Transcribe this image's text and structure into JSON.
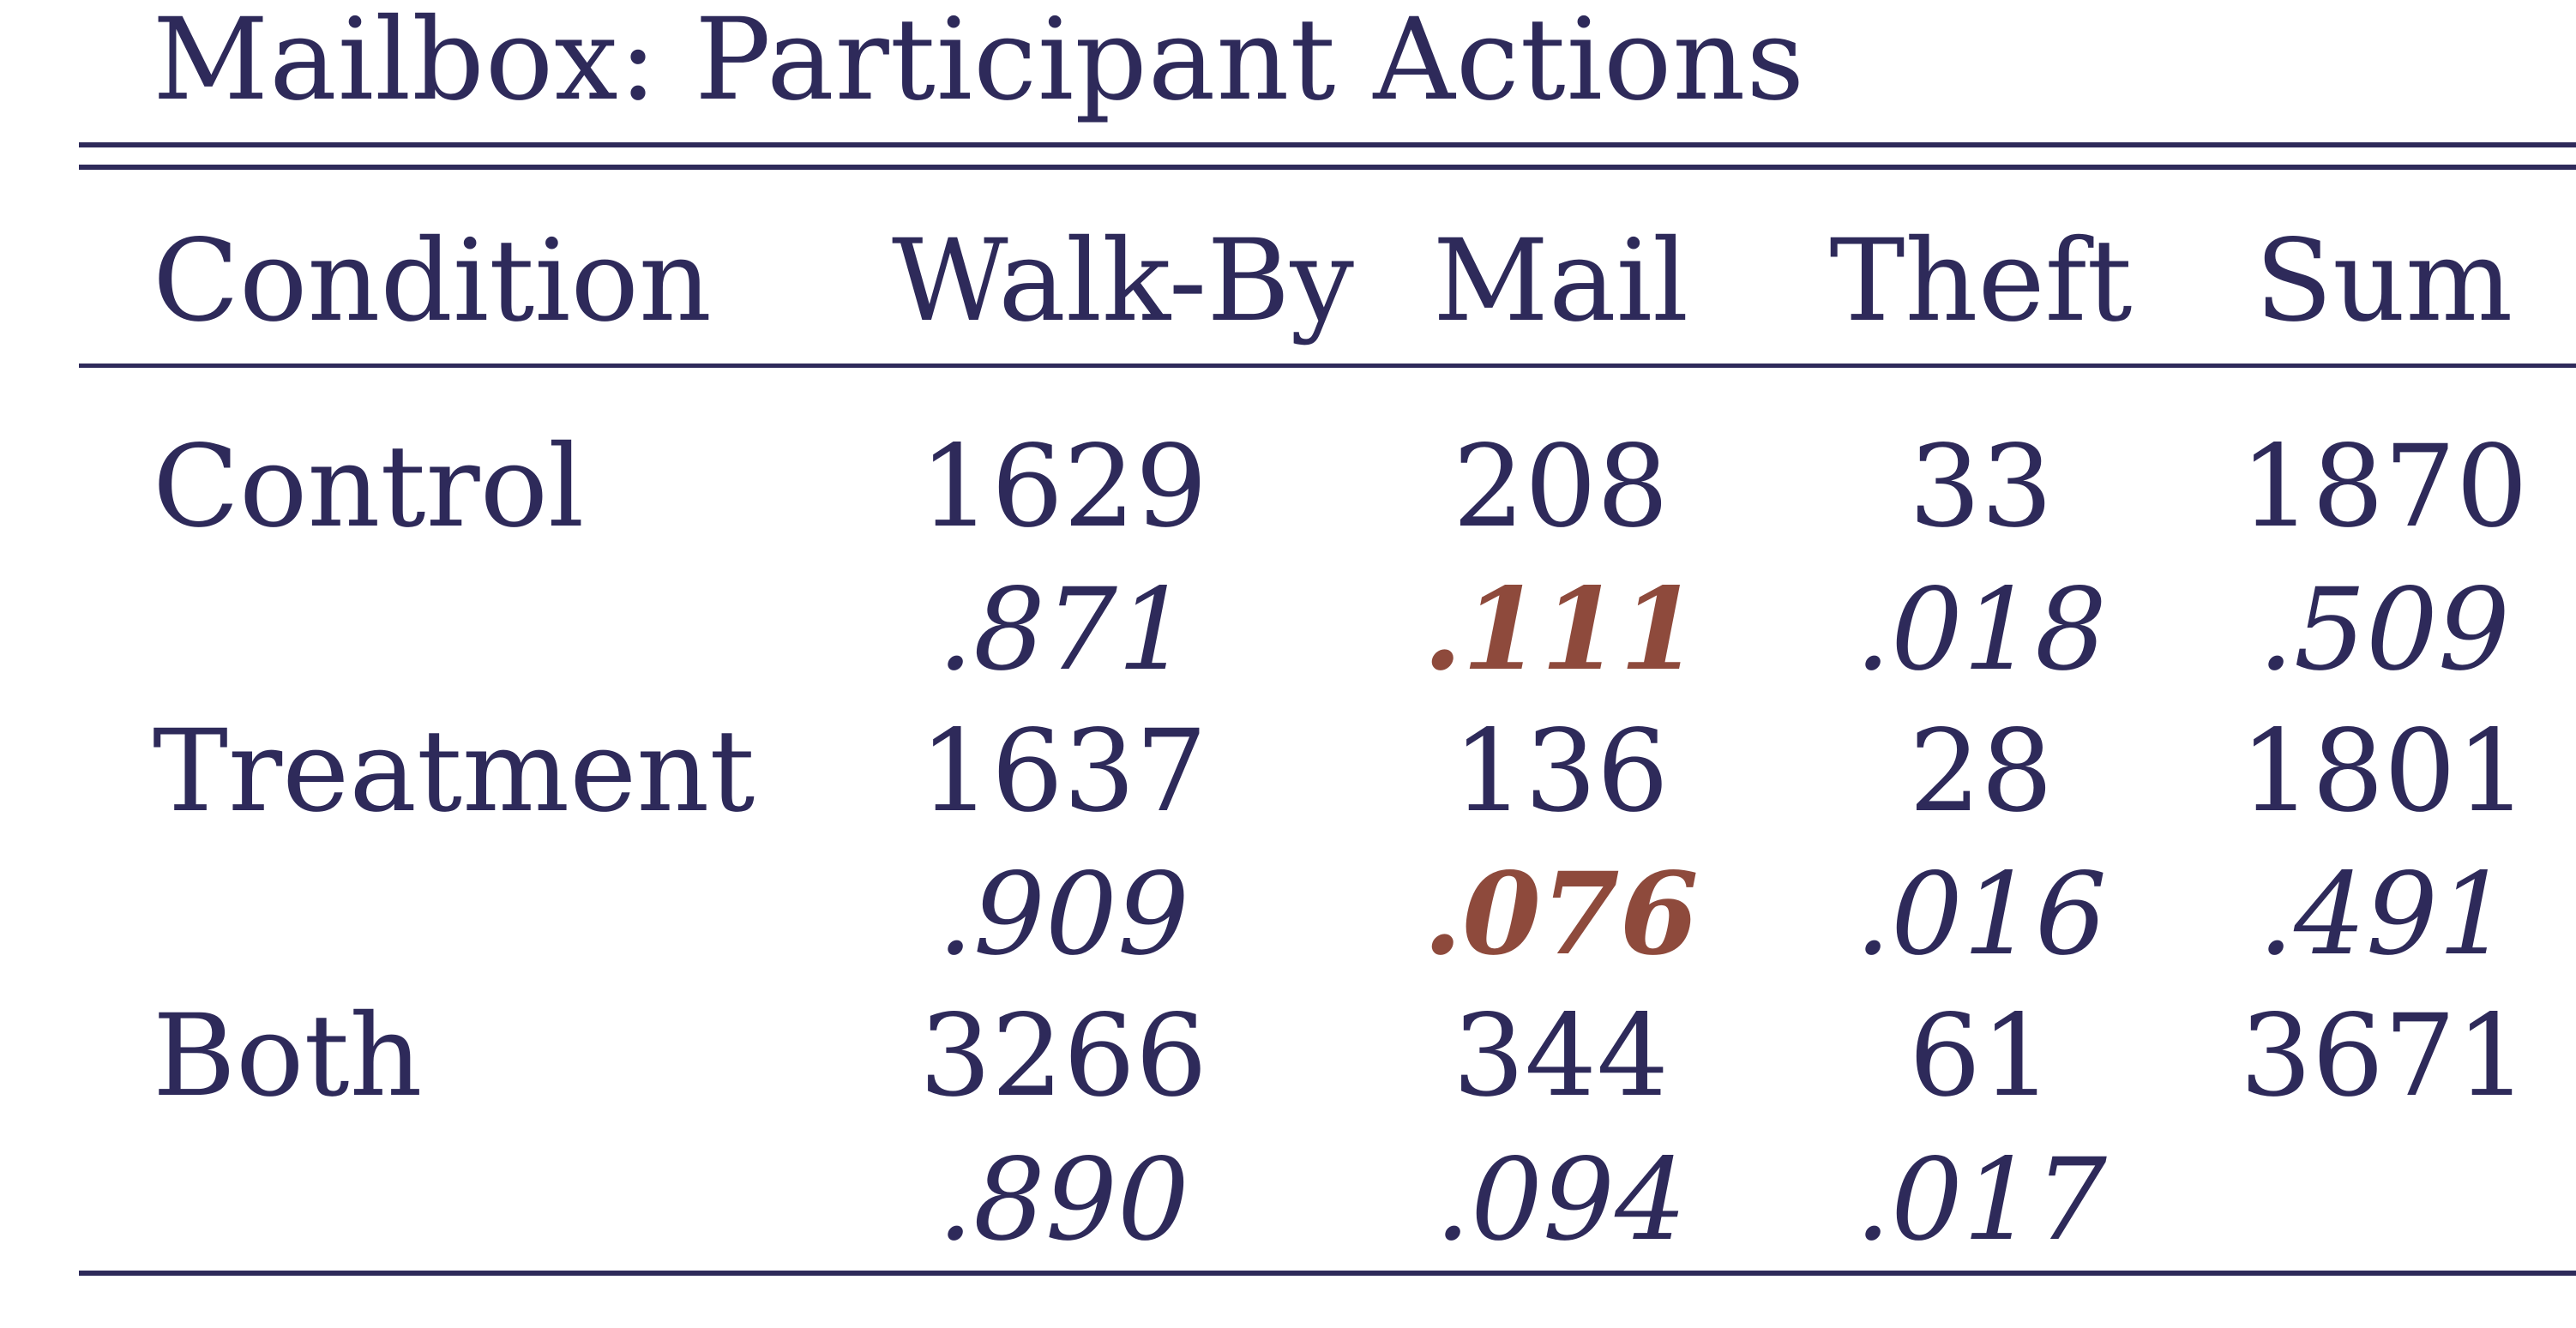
{
  "title": "Mailbox: Participant Actions",
  "colors": {
    "text": "#2e2a5a",
    "highlight": "#8e4a3c"
  },
  "table": {
    "headers": [
      "Condition",
      "Walk-By",
      "Mail",
      "Theft",
      "Sum"
    ],
    "rows": [
      {
        "condition": "Control",
        "counts": [
          "1629",
          "208",
          "33",
          "1870"
        ],
        "proportions": [
          ".871",
          ".111",
          ".018",
          ".509"
        ]
      },
      {
        "condition": "Treatment",
        "counts": [
          "1637",
          "136",
          "28",
          "1801"
        ],
        "proportions": [
          ".909",
          ".076",
          ".016",
          ".491"
        ]
      },
      {
        "condition": "Both",
        "counts": [
          "3266",
          "344",
          "61",
          "3671"
        ],
        "proportions": [
          ".890",
          ".094",
          ".017",
          ""
        ]
      }
    ],
    "highlighted_cells": [
      "Control Mail proportion",
      "Treatment Mail proportion"
    ]
  }
}
